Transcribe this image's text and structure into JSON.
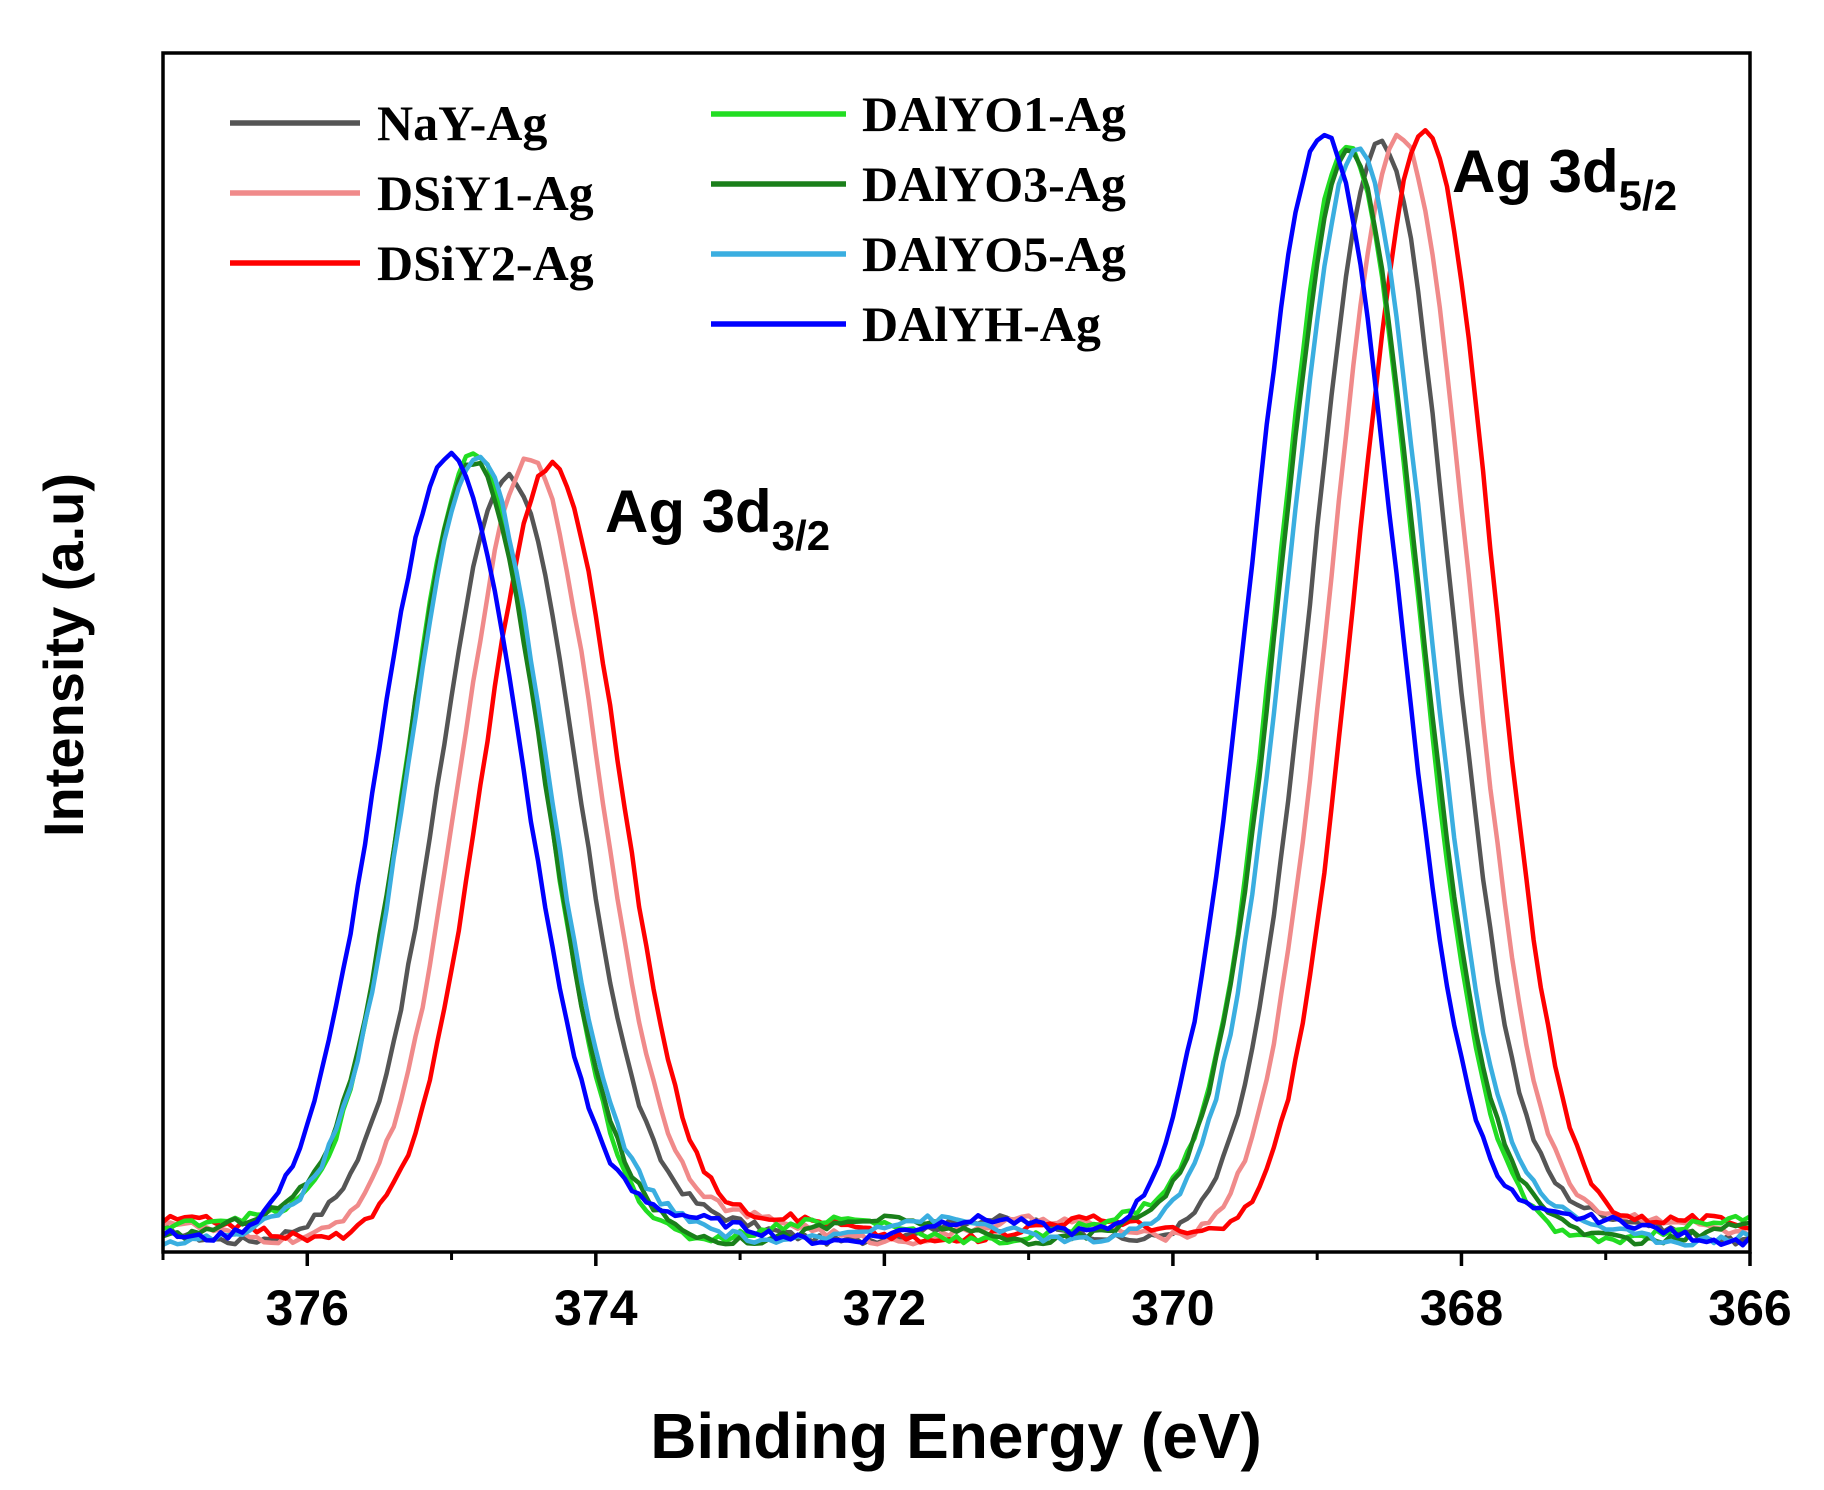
{
  "chart_data": {
    "type": "line",
    "title": "",
    "xlabel": "Binding Energy (eV)",
    "ylabel": "Intensity (a.u)",
    "xlim": [
      377,
      366
    ],
    "ylim": [
      0,
      1.1
    ],
    "x_inverted": true,
    "xticks": [
      376,
      374,
      372,
      370,
      368,
      366
    ],
    "yticks_shown": false,
    "grid": false,
    "legend_position": "top-left",
    "annotations": [
      {
        "base": "Ag 3d",
        "sub": "3/2",
        "x": 373.95,
        "y": 0.66
      },
      {
        "base": "Ag 3d",
        "sub": "5/2",
        "x": 368.1,
        "y": 0.98
      }
    ],
    "series": [
      {
        "name": "NaY-Ag",
        "color": "#555555",
        "peaks": [
          {
            "center": 374.6,
            "height": 0.7
          },
          {
            "center": 368.55,
            "height": 1.0
          }
        ],
        "sigma": 0.47,
        "baseline": 0.02
      },
      {
        "name": "DSiY1-Ag",
        "color": "#f08a8a",
        "peaks": [
          {
            "center": 374.45,
            "height": 0.71
          },
          {
            "center": 368.42,
            "height": 1.0
          }
        ],
        "sigma": 0.47,
        "baseline": 0.02
      },
      {
        "name": "DSiY2-Ag",
        "color": "#ff0000",
        "peaks": [
          {
            "center": 374.3,
            "height": 0.7
          },
          {
            "center": 368.25,
            "height": 1.0
          }
        ],
        "sigma": 0.47,
        "baseline": 0.02
      },
      {
        "name": "DAlYO1-Ag",
        "color": "#22dd22",
        "peaks": [
          {
            "center": 374.85,
            "height": 0.71
          },
          {
            "center": 368.8,
            "height": 1.0
          }
        ],
        "sigma": 0.47,
        "baseline": 0.02
      },
      {
        "name": "DAlYO3-Ag",
        "color": "#1a7f1a",
        "peaks": [
          {
            "center": 374.85,
            "height": 0.71
          },
          {
            "center": 368.78,
            "height": 1.0
          }
        ],
        "sigma": 0.47,
        "baseline": 0.02
      },
      {
        "name": "DAlYO5-Ag",
        "color": "#3aaee0",
        "peaks": [
          {
            "center": 374.82,
            "height": 0.72
          },
          {
            "center": 368.72,
            "height": 1.0
          }
        ],
        "sigma": 0.47,
        "baseline": 0.02
      },
      {
        "name": "DAlYH-Ag",
        "color": "#0000ff",
        "peaks": [
          {
            "center": 375.0,
            "height": 0.71
          },
          {
            "center": 368.95,
            "height": 1.0
          }
        ],
        "sigma": 0.5,
        "baseline": 0.02
      }
    ]
  }
}
